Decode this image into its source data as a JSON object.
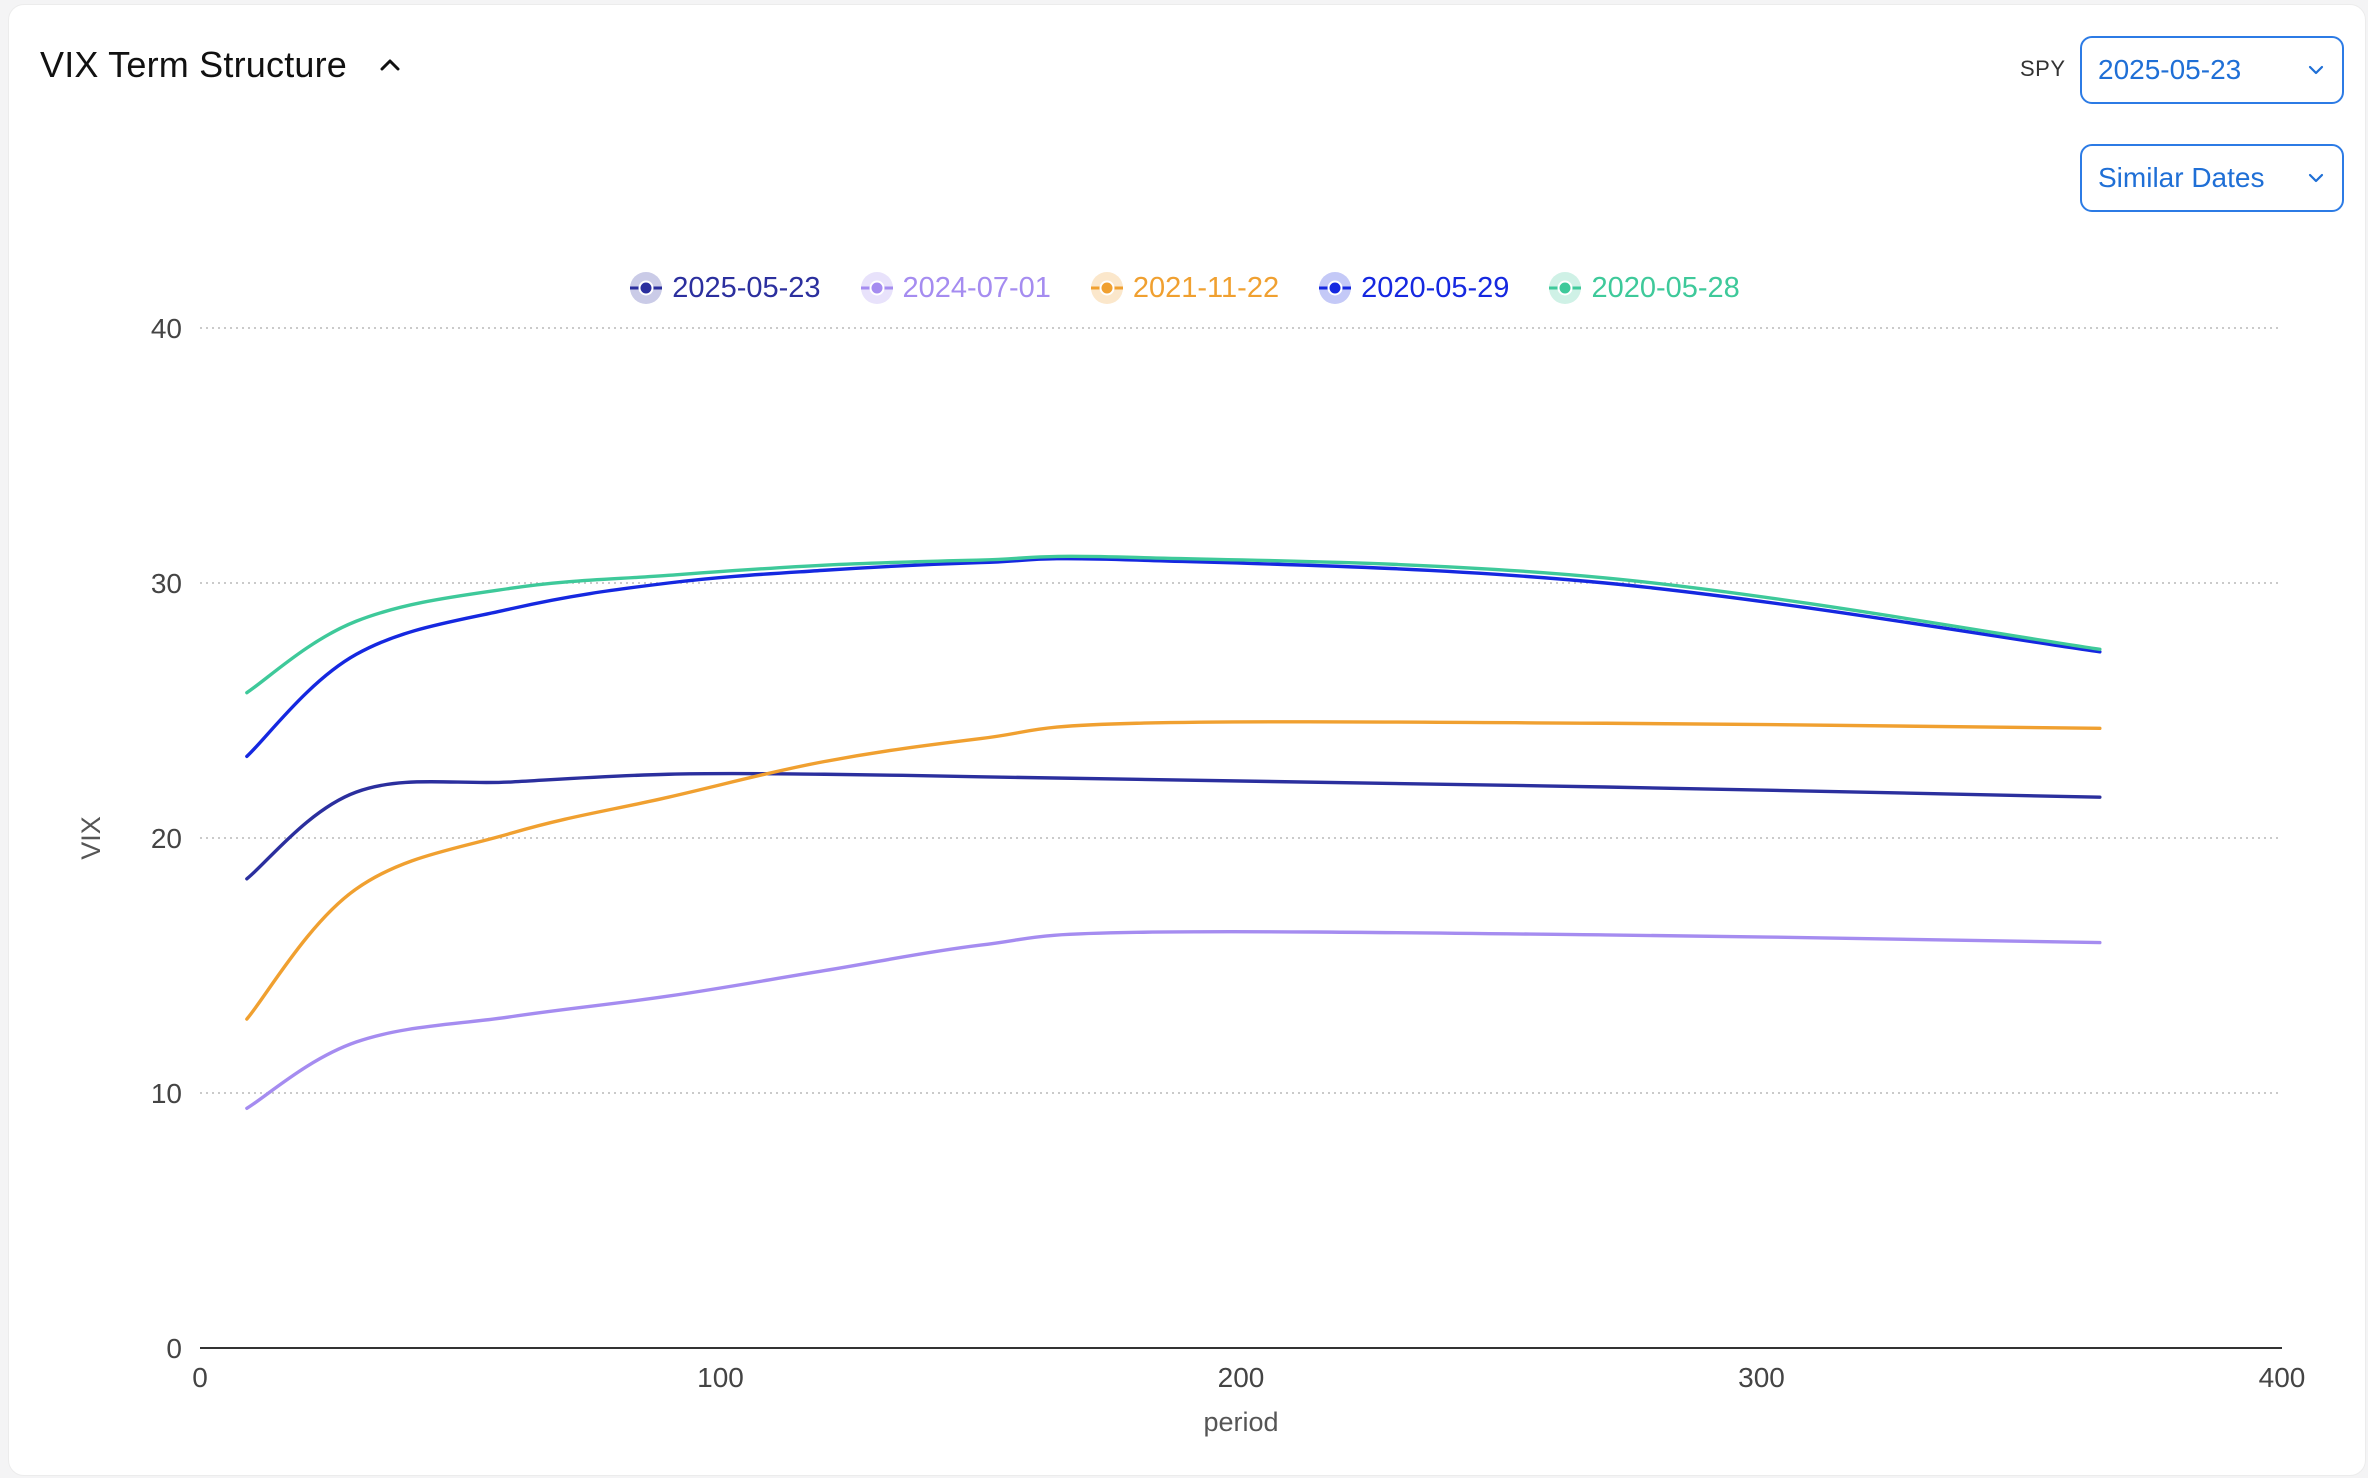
{
  "header": {
    "title": "VIX Term Structure"
  },
  "controls": {
    "ticker_label": "SPY",
    "date_value": "2025-05-23",
    "mode_value": "Similar Dates"
  },
  "chart_data": {
    "type": "line",
    "title": "",
    "xlabel": "period",
    "ylabel": "VIX",
    "xlim": [
      0,
      400
    ],
    "ylim": [
      0,
      40
    ],
    "xticks": [
      0,
      100,
      200,
      300,
      400
    ],
    "yticks": [
      0,
      10,
      20,
      30,
      40
    ],
    "grid": "horizontal dotted",
    "legend_position": "top-center",
    "series": [
      {
        "name": "2025-05-23",
        "color": "#2b2f9e",
        "x": [
          9,
          30,
          60,
          90,
          120,
          150,
          180,
          270,
          365
        ],
        "y": [
          18.4,
          21.8,
          22.2,
          22.5,
          22.5,
          22.4,
          22.3,
          22.0,
          21.6
        ]
      },
      {
        "name": "2024-07-01",
        "color": "#a58cf0",
        "x": [
          9,
          30,
          60,
          90,
          120,
          150,
          180,
          270,
          365
        ],
        "y": [
          9.4,
          12.0,
          13.0,
          13.8,
          14.8,
          15.8,
          16.3,
          16.2,
          15.9
        ]
      },
      {
        "name": "2021-11-22",
        "color": "#f0a030",
        "x": [
          9,
          30,
          60,
          90,
          120,
          150,
          180,
          270,
          365
        ],
        "y": [
          12.9,
          18.0,
          20.2,
          21.6,
          23.0,
          23.9,
          24.5,
          24.5,
          24.3
        ]
      },
      {
        "name": "2020-05-29",
        "color": "#1528e0",
        "x": [
          9,
          30,
          60,
          90,
          120,
          150,
          180,
          270,
          365
        ],
        "y": [
          23.2,
          27.2,
          29.0,
          30.0,
          30.5,
          30.8,
          30.9,
          30.0,
          27.3
        ]
      },
      {
        "name": "2020-05-28",
        "color": "#3ec99a",
        "x": [
          9,
          30,
          60,
          90,
          120,
          150,
          180,
          270,
          365
        ],
        "y": [
          25.7,
          28.5,
          29.8,
          30.3,
          30.7,
          30.9,
          31.0,
          30.2,
          27.4
        ]
      }
    ]
  }
}
